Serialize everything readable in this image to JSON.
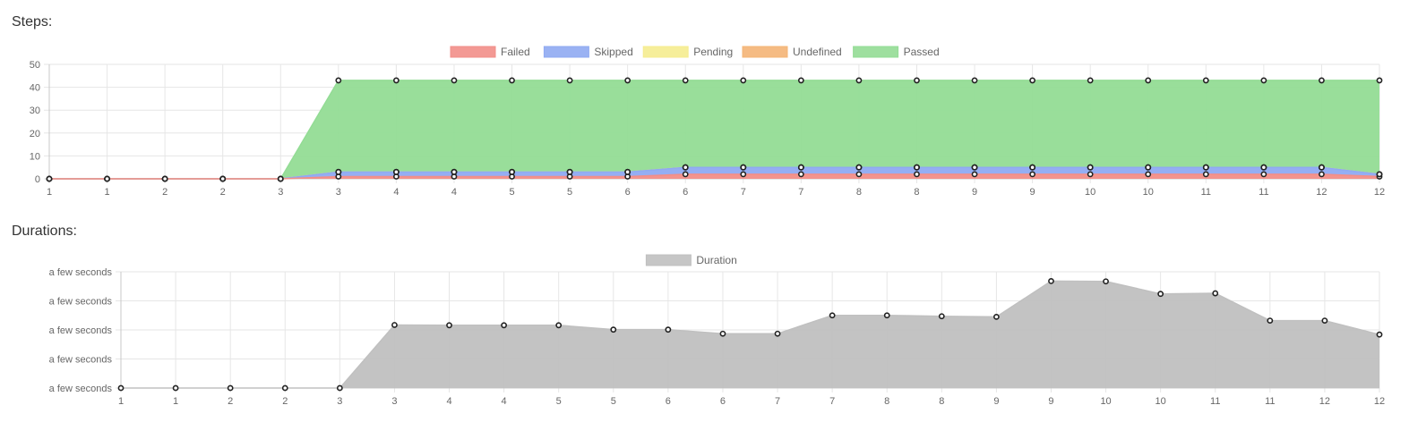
{
  "steps": {
    "title": "Steps:"
  },
  "durations": {
    "title": "Durations:"
  },
  "chart_data": [
    {
      "type": "area",
      "stacked": true,
      "title": "Steps:",
      "legend_position": "top",
      "grid": true,
      "x": [
        "1",
        "1",
        "2",
        "2",
        "3",
        "3",
        "4",
        "4",
        "5",
        "5",
        "6",
        "6",
        "7",
        "7",
        "8",
        "8",
        "9",
        "9",
        "10",
        "10",
        "11",
        "11",
        "12",
        "12"
      ],
      "ylim": [
        0,
        50
      ],
      "yticks": [
        0,
        10,
        20,
        30,
        40,
        50
      ],
      "series": [
        {
          "name": "Failed",
          "color": "#f28e88",
          "values": [
            0,
            0,
            0,
            0,
            0,
            1,
            1,
            1,
            1,
            1,
            1,
            2,
            2,
            2,
            2,
            2,
            2,
            2,
            2,
            2,
            2,
            2,
            2,
            1
          ]
        },
        {
          "name": "Skipped",
          "color": "#8faaf2",
          "values": [
            0,
            0,
            0,
            0,
            0,
            2,
            2,
            2,
            2,
            2,
            2,
            3,
            3,
            3,
            3,
            3,
            3,
            3,
            3,
            3,
            3,
            3,
            3,
            1
          ]
        },
        {
          "name": "Pending",
          "color": "#f5ec8f",
          "values": [
            0,
            0,
            0,
            0,
            0,
            0,
            0,
            0,
            0,
            0,
            0,
            0,
            0,
            0,
            0,
            0,
            0,
            0,
            0,
            0,
            0,
            0,
            0,
            0
          ]
        },
        {
          "name": "Undefined",
          "color": "#f4b475",
          "values": [
            0,
            0,
            0,
            0,
            0,
            0,
            0,
            0,
            0,
            0,
            0,
            0,
            0,
            0,
            0,
            0,
            0,
            0,
            0,
            0,
            0,
            0,
            0,
            0
          ]
        },
        {
          "name": "Passed",
          "color": "#93dc95",
          "values": [
            0,
            0,
            0,
            0,
            0,
            40,
            40,
            40,
            40,
            40,
            40,
            38,
            38,
            38,
            38,
            38,
            38,
            38,
            38,
            38,
            38,
            38,
            38,
            41
          ]
        }
      ]
    },
    {
      "type": "area",
      "title": "Durations:",
      "legend_position": "top",
      "grid": true,
      "x": [
        "1",
        "1",
        "2",
        "2",
        "3",
        "3",
        "4",
        "4",
        "5",
        "5",
        "6",
        "6",
        "7",
        "7",
        "8",
        "8",
        "9",
        "9",
        "10",
        "10",
        "11",
        "11",
        "12",
        "12"
      ],
      "ylim": [
        0,
        4
      ],
      "yticks": [
        0,
        1,
        2,
        3,
        4
      ],
      "ytick_labels": [
        "a few seconds",
        "a few seconds",
        "a few seconds",
        "a few seconds",
        "a few seconds"
      ],
      "series": [
        {
          "name": "Duration",
          "color": "#c0c0c0",
          "values": [
            0,
            0,
            0,
            0,
            0,
            2.17,
            2.16,
            2.16,
            2.16,
            2.01,
            2.01,
            1.87,
            1.87,
            2.5,
            2.5,
            2.47,
            2.45,
            3.68,
            3.67,
            3.24,
            3.26,
            2.32,
            2.32,
            1.84
          ]
        }
      ]
    }
  ]
}
